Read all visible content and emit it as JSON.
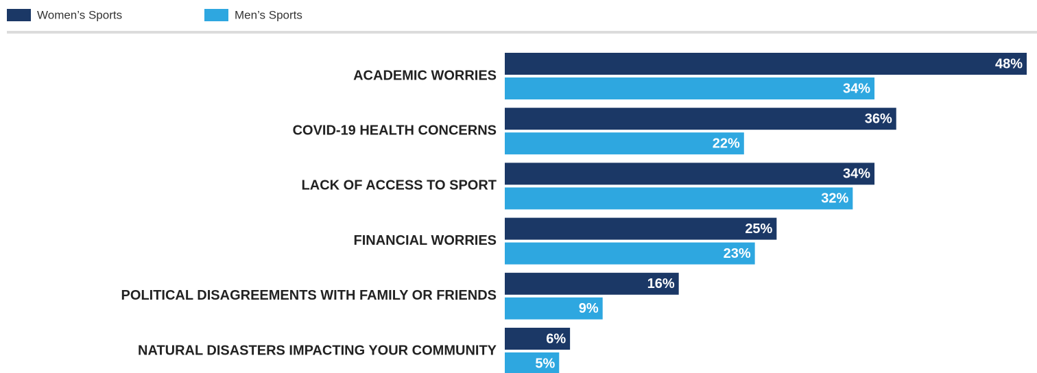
{
  "chart_data": {
    "type": "bar",
    "orientation": "horizontal",
    "categories": [
      "ACADEMIC WORRIES",
      "COVID-19 HEALTH CONCERNS",
      "LACK OF ACCESS TO SPORT",
      "FINANCIAL WORRIES",
      "POLITICAL DISAGREEMENTS WITH FAMILY OR FRIENDS",
      "NATURAL DISASTERS IMPACTING YOUR COMMUNITY"
    ],
    "series": [
      {
        "name": "Women’s Sports",
        "color": "#1b3866",
        "values": [
          48,
          36,
          34,
          25,
          16,
          6
        ],
        "value_labels": [
          "48%",
          "36%",
          "34%",
          "25%",
          "16%",
          "6%"
        ]
      },
      {
        "name": "Men’s Sports",
        "color": "#2ea7e0",
        "values": [
          34,
          22,
          32,
          23,
          9,
          5
        ],
        "value_labels": [
          "34%",
          "22%",
          "32%",
          "23%",
          "9%",
          "5%"
        ]
      }
    ]
  }
}
